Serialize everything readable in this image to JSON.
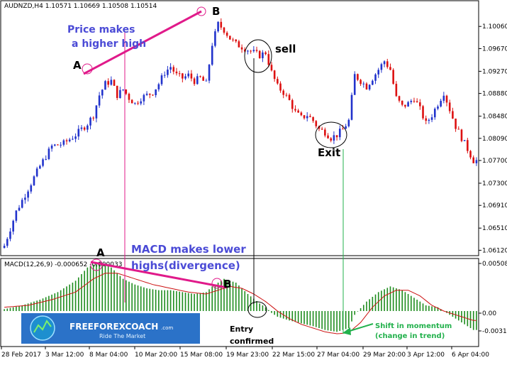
{
  "price_header": "AUDNZD,H4  1.10571 1.10669 1.10508 1.10514",
  "macd_header": "MACD(12,26,9) -0.000652 -0.000033",
  "colors": {
    "bull": "#2233cc",
    "bear": "#dd1111",
    "hist": "#1e8c1e",
    "signal": "#cc1111",
    "divergence": "#e01a8a",
    "annot_blue": "#4b4bd6",
    "annot_green": "#22b14c"
  },
  "annotations": {
    "price_higher_high_line1": "Price makes",
    "price_higher_high_line2": "a higher high",
    "point_a": "A",
    "point_b": "B",
    "sell": "sell",
    "exit": "Exit",
    "macd_lower_highs_line1": "MACD makes lower",
    "macd_lower_highs_line2": "highs(divergence)",
    "entry_line1": "Entry",
    "entry_line2": "confirmed",
    "shift_line1": "Shift in momentum",
    "shift_line2": "(change in trend)"
  },
  "logo": {
    "name": "FREEFOREXCOACH",
    "domain": ".com",
    "tagline": "Ride The Market"
  },
  "chart_data": [
    {
      "type": "candlestick",
      "symbol": "AUDNZD",
      "timeframe": "H4",
      "ylim": [
        1.0605,
        1.1035
      ],
      "yticks": [
        "1.10060",
        "1.09670",
        "1.09270",
        "1.08880",
        "1.08480",
        "1.08090",
        "1.07700",
        "1.07300",
        "1.06910",
        "1.06510",
        "1.06120"
      ],
      "xticks": [
        "28 Feb 2017",
        "3 Mar 12:00",
        "8 Mar 04:00",
        "10 Mar 20:00",
        "15 Mar 08:00",
        "19 Mar 23:00",
        "22 Mar 15:00",
        "27 Mar 04:00",
        "29 Mar 20:00",
        "3 Apr 12:00",
        "6 Apr 04:00"
      ],
      "close_path": [
        [
          0,
          1.062
        ],
        [
          4,
          1.068
        ],
        [
          8,
          1.072
        ],
        [
          12,
          1.076
        ],
        [
          16,
          1.0795
        ],
        [
          20,
          1.08
        ],
        [
          24,
          1.0815
        ],
        [
          28,
          1.0835
        ],
        [
          30,
          1.085
        ],
        [
          32,
          1.0885
        ],
        [
          34,
          1.0905
        ],
        [
          36,
          1.091
        ],
        [
          38,
          1.0885
        ],
        [
          40,
          1.0895
        ],
        [
          42,
          1.088
        ],
        [
          44,
          1.087
        ],
        [
          46,
          1.088
        ],
        [
          48,
          1.0885
        ],
        [
          50,
          1.089
        ],
        [
          52,
          1.0905
        ],
        [
          54,
          1.0925
        ],
        [
          56,
          1.0935
        ],
        [
          58,
          1.092
        ],
        [
          60,
          1.0915
        ],
        [
          62,
          1.092
        ],
        [
          64,
          1.091
        ],
        [
          66,
          1.0915
        ],
        [
          68,
          1.0905
        ],
        [
          70,
          1.0975
        ],
        [
          72,
          1.101
        ],
        [
          74,
          1.1
        ],
        [
          76,
          1.0985
        ],
        [
          78,
          1.0975
        ],
        [
          80,
          1.097
        ],
        [
          82,
          1.0965
        ],
        [
          84,
          1.096
        ],
        [
          86,
          1.0955
        ],
        [
          88,
          1.096
        ],
        [
          90,
          1.0925
        ],
        [
          92,
          1.09
        ],
        [
          94,
          1.089
        ],
        [
          96,
          1.0875
        ],
        [
          98,
          1.0855
        ],
        [
          100,
          1.0845
        ],
        [
          102,
          1.085
        ],
        [
          104,
          1.084
        ],
        [
          106,
          1.0825
        ],
        [
          108,
          1.082
        ],
        [
          110,
          1.081
        ],
        [
          112,
          1.0815
        ],
        [
          114,
          1.0825
        ],
        [
          116,
          1.084
        ],
        [
          118,
          1.092
        ],
        [
          120,
          1.091
        ],
        [
          122,
          1.09
        ],
        [
          124,
          1.0915
        ],
        [
          126,
          1.093
        ],
        [
          128,
          1.0945
        ],
        [
          130,
          1.093
        ],
        [
          132,
          1.088
        ],
        [
          134,
          1.0865
        ],
        [
          136,
          1.087
        ],
        [
          138,
          1.088
        ],
        [
          140,
          1.086
        ],
        [
          142,
          1.0835
        ],
        [
          144,
          1.085
        ],
        [
          146,
          1.087
        ],
        [
          148,
          1.089
        ],
        [
          150,
          1.086
        ],
        [
          152,
          1.083
        ],
        [
          154,
          1.081
        ],
        [
          156,
          1.079
        ],
        [
          158,
          1.077
        ]
      ],
      "markers": {
        "A": {
          "x": 30,
          "price": 1.0925
        },
        "B": {
          "x": 72,
          "price": 1.1025
        },
        "sell": {
          "x": 88,
          "price": 1.0955
        },
        "exit": {
          "x": 114,
          "price": 1.081
        }
      }
    },
    {
      "type": "histogram_line",
      "indicator": "MACD(12,26,9)",
      "ylim": [
        -0.0036,
        0.0054
      ],
      "yticks": [
        "0.00508",
        "0.00",
        "-0.00312"
      ],
      "macd_path": [
        [
          0,
          0.0002
        ],
        [
          6,
          0.0006
        ],
        [
          12,
          0.0012
        ],
        [
          18,
          0.002
        ],
        [
          24,
          0.0032
        ],
        [
          28,
          0.0046
        ],
        [
          32,
          0.0052
        ],
        [
          36,
          0.0046
        ],
        [
          40,
          0.0034
        ],
        [
          44,
          0.0028
        ],
        [
          48,
          0.0024
        ],
        [
          52,
          0.0022
        ],
        [
          56,
          0.0022
        ],
        [
          60,
          0.002
        ],
        [
          64,
          0.0018
        ],
        [
          68,
          0.002
        ],
        [
          70,
          0.0026
        ],
        [
          74,
          0.0034
        ],
        [
          78,
          0.003
        ],
        [
          82,
          0.0018
        ],
        [
          86,
          0.0008
        ],
        [
          88,
          0.0004
        ],
        [
          90,
          -0.0002
        ],
        [
          92,
          -0.0006
        ],
        [
          96,
          -0.001
        ],
        [
          100,
          -0.0013
        ],
        [
          104,
          -0.0016
        ],
        [
          108,
          -0.002
        ],
        [
          112,
          -0.0022
        ],
        [
          116,
          -0.0018
        ],
        [
          118,
          -0.0004
        ],
        [
          122,
          0.001
        ],
        [
          126,
          0.002
        ],
        [
          130,
          0.0026
        ],
        [
          134,
          0.0022
        ],
        [
          138,
          0.0014
        ],
        [
          142,
          0.0006
        ],
        [
          146,
          0.0004
        ],
        [
          150,
          -0.0004
        ],
        [
          154,
          -0.0012
        ],
        [
          158,
          -0.002
        ]
      ],
      "signal_path": [
        [
          0,
          0.0004
        ],
        [
          8,
          0.0006
        ],
        [
          16,
          0.0012
        ],
        [
          24,
          0.002
        ],
        [
          30,
          0.0034
        ],
        [
          34,
          0.004
        ],
        [
          38,
          0.004
        ],
        [
          44,
          0.0034
        ],
        [
          50,
          0.0028
        ],
        [
          56,
          0.0024
        ],
        [
          62,
          0.002
        ],
        [
          68,
          0.0018
        ],
        [
          72,
          0.0022
        ],
        [
          76,
          0.0026
        ],
        [
          80,
          0.0024
        ],
        [
          84,
          0.0018
        ],
        [
          88,
          0.001
        ],
        [
          92,
          0.0
        ],
        [
          96,
          -0.0008
        ],
        [
          100,
          -0.0014
        ],
        [
          104,
          -0.0018
        ],
        [
          108,
          -0.0022
        ],
        [
          112,
          -0.0024
        ],
        [
          116,
          -0.0023
        ],
        [
          120,
          -0.0012
        ],
        [
          124,
          0.0004
        ],
        [
          128,
          0.0016
        ],
        [
          132,
          0.0022
        ],
        [
          136,
          0.0022
        ],
        [
          140,
          0.0016
        ],
        [
          144,
          0.0006
        ],
        [
          148,
          0.0
        ],
        [
          152,
          -0.0004
        ],
        [
          156,
          -0.0008
        ],
        [
          158,
          -0.001
        ]
      ],
      "markers": {
        "A": {
          "x": 32,
          "value": 0.005
        },
        "B": {
          "x": 74,
          "value": 0.0034
        },
        "entry": {
          "x": 90,
          "value": 0.0
        },
        "shift": {
          "x": 116,
          "value": -0.0025
        }
      }
    }
  ]
}
